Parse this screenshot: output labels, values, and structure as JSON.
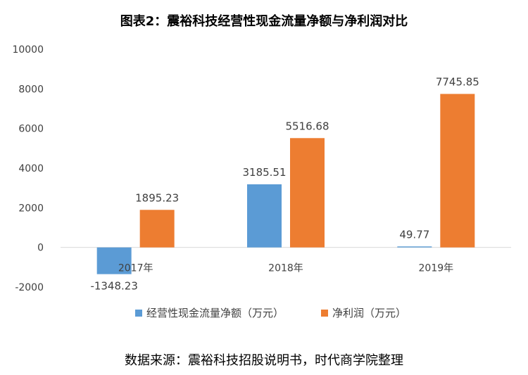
{
  "chart_data": {
    "type": "bar",
    "title": "图表2：震裕科技经营性现金流量净额与净利润对比",
    "categories": [
      "2017年",
      "2018年",
      "2019年"
    ],
    "series": [
      {
        "name": "经营性现金流量净额（万元）",
        "values": [
          -1348.23,
          3185.51,
          49.77
        ],
        "color": "#5B9BD5"
      },
      {
        "name": "净利润（万元）",
        "values": [
          1895.23,
          5516.68,
          7745.85
        ],
        "color": "#ED7D31"
      }
    ],
    "data_labels": [
      [
        "-1348.23",
        "3185.51",
        "49.77"
      ],
      [
        "1895.23",
        "5516.68",
        "7745.85"
      ]
    ],
    "yticks": [
      "10000",
      "8000",
      "6000",
      "4000",
      "2000",
      "0",
      "-2000"
    ],
    "ylim": [
      -2000,
      10000
    ],
    "legend_position": "bottom",
    "grid": false
  },
  "source_note": "数据来源：震裕科技招股说明书，时代商学院整理"
}
